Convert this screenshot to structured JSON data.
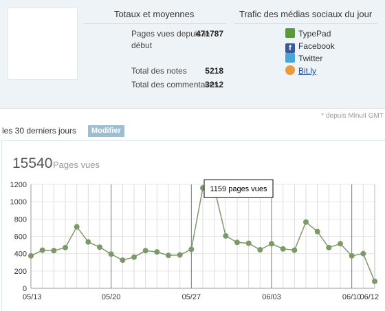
{
  "totals": {
    "heading": "Totaux et moyennes",
    "rows": [
      {
        "value": "471787",
        "label": "Pages vues depuis le début"
      },
      {
        "value": "5218",
        "label": "Total des notes"
      },
      {
        "value": "3212",
        "label": "Total des commentaires"
      }
    ]
  },
  "social": {
    "heading": "Trafic des médias sociaux du jour",
    "items": [
      {
        "label": "TypePad",
        "icon": "typepad-icon",
        "color": "#5a9a3a"
      },
      {
        "label": "Facebook",
        "icon": "facebook-icon",
        "color": "#3b5998"
      },
      {
        "label": "Twitter",
        "icon": "twitter-icon",
        "color": "#4aa6d8"
      },
      {
        "label": "Bit.ly",
        "icon": "bitly-icon",
        "color": "#e89a3c",
        "is_link": true
      }
    ]
  },
  "footnote": "* depuis Minuit GMT",
  "period": {
    "label": "les 30 derniers jours",
    "modify_button": "Modifier"
  },
  "summary": {
    "total": "15540",
    "unit": "Pages vues"
  },
  "tooltip": "1159 pages vues",
  "chart_data": {
    "type": "line",
    "x": [
      "05/13",
      "05/14",
      "05/15",
      "05/16",
      "05/17",
      "05/18",
      "05/19",
      "05/20",
      "05/21",
      "05/22",
      "05/23",
      "05/24",
      "05/25",
      "05/26",
      "05/27",
      "05/28",
      "05/29",
      "05/30",
      "05/31",
      "06/01",
      "06/02",
      "06/03",
      "06/04",
      "06/05",
      "06/06",
      "06/07",
      "06/08",
      "06/09",
      "06/10",
      "06/11",
      "06/12"
    ],
    "values": [
      375,
      440,
      435,
      470,
      710,
      535,
      475,
      395,
      325,
      360,
      435,
      420,
      380,
      385,
      450,
      1159,
      1159,
      605,
      530,
      520,
      445,
      515,
      455,
      440,
      765,
      655,
      470,
      515,
      375,
      400,
      80
    ],
    "x_tick_labels": [
      "05/13",
      "05/20",
      "05/27",
      "06/03",
      "06/10",
      "06/12"
    ],
    "y_ticks": [
      0,
      200,
      400,
      600,
      800,
      1000,
      1200
    ],
    "ylim": [
      0,
      1200
    ],
    "series_color": "#7b9a68",
    "grid": true
  }
}
